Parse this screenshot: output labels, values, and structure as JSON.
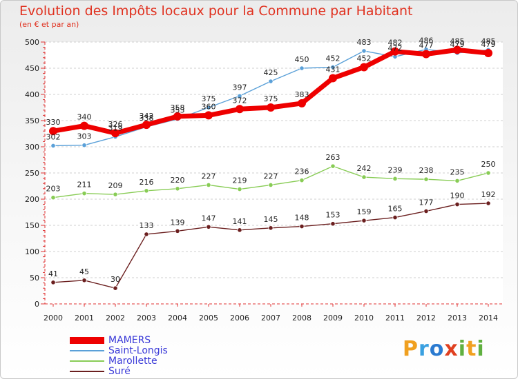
{
  "title": "Evolution des Impôts locaux pour la Commune par Habitant",
  "subtitle": "(en € et par an)",
  "logo": {
    "p": "P",
    "r": "r",
    "o": "o",
    "x": "x",
    "i": "i",
    "t": "t",
    "i2": "i"
  },
  "chart_data": {
    "type": "line",
    "title": "Evolution des Impôts locaux pour la Commune par Habitant",
    "subtitle": "(en € et par an)",
    "xlabel": "",
    "ylabel": "",
    "ylim": [
      0,
      500
    ],
    "yticks": [
      0,
      50,
      100,
      150,
      200,
      250,
      300,
      350,
      400,
      450,
      500
    ],
    "categories": [
      "2000",
      "2001",
      "2002",
      "2003",
      "2004",
      "2005",
      "2006",
      "2007",
      "2008",
      "2009",
      "2010",
      "2011",
      "2012",
      "2013",
      "2014"
    ],
    "legend_position": "bottom-left",
    "series": [
      {
        "name": "MAMERS",
        "color": "#ee0000",
        "values": [
          330,
          340,
          326,
          342,
          358,
          360,
          372,
          375,
          383,
          431,
          452,
          482,
          477,
          485,
          479
        ]
      },
      {
        "name": "Saint-Longis",
        "color": "#5aa0d8",
        "values": [
          302,
          303,
          319,
          338,
          353,
          375,
          397,
          425,
          450,
          452,
          483,
          472,
          486,
          479,
          485
        ]
      },
      {
        "name": "Marollette",
        "color": "#88cc55",
        "values": [
          203,
          211,
          209,
          216,
          220,
          227,
          219,
          227,
          236,
          263,
          242,
          239,
          238,
          235,
          250
        ]
      },
      {
        "name": "Suré",
        "color": "#6b1f1f",
        "values": [
          41,
          45,
          30,
          133,
          139,
          147,
          141,
          145,
          148,
          153,
          159,
          165,
          177,
          190,
          192
        ]
      }
    ]
  }
}
